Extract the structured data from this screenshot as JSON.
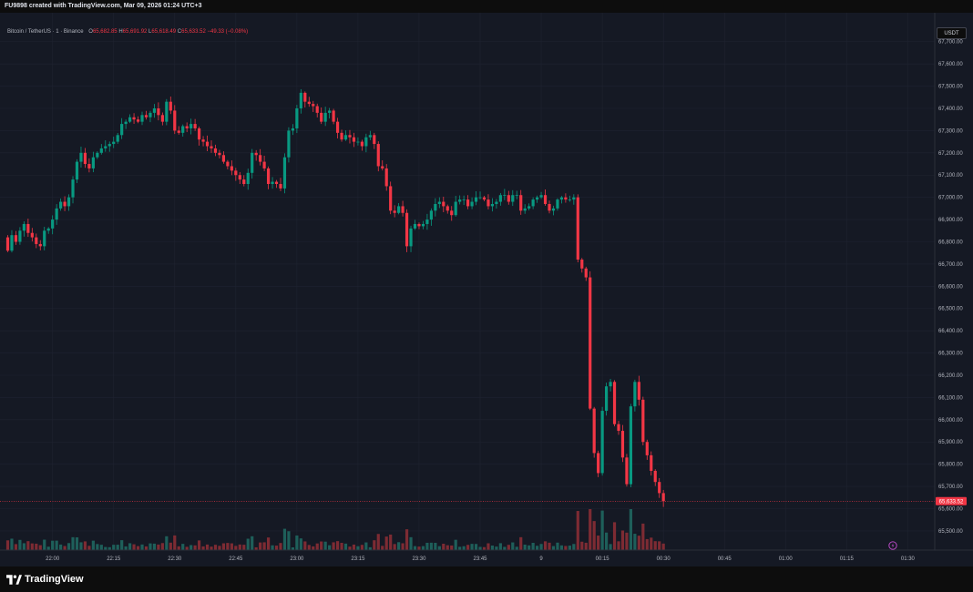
{
  "header": {
    "caption": "FU9898 created with TradingView.com, Mar 09, 2026 01:24 UTC+3"
  },
  "legend": {
    "symbol": "Bitcoin / TetherUS · 1 · Binance",
    "open_label": "O",
    "open": "65,682.85",
    "high_label": "H",
    "high": "65,691.92",
    "low_label": "L",
    "low": "65,618.49",
    "close_label": "C",
    "close": "65,633.52",
    "change": "−49.33 (−0.08%)"
  },
  "currency": "USDT",
  "last_price_label": "65,633.52",
  "footer": {
    "brand": "TradingView"
  },
  "colors": {
    "background": "#151924",
    "grid": "#1f2330",
    "up": "#089981",
    "down": "#f23645",
    "vol_up": "#1e5f5a",
    "vol_down": "#7d2b33"
  },
  "chart_data": {
    "type": "candlestick",
    "interval_minutes": 1,
    "y_axis": {
      "range": [
        65430,
        67830
      ],
      "ticks": [
        65500,
        65600,
        65700,
        65800,
        65900,
        66000,
        66100,
        66200,
        66300,
        66400,
        66500,
        66600,
        66700,
        66800,
        66900,
        67000,
        67100,
        67200,
        67300,
        67400,
        67500,
        67600,
        67700
      ],
      "tick_labels": [
        "65,500.00",
        "65,600.00",
        "65,700.00",
        "65,800.00",
        "65,900.00",
        "66,000.00",
        "66,100.00",
        "66,200.00",
        "66,300.00",
        "66,400.00",
        "66,500.00",
        "66,600.00",
        "66,700.00",
        "66,800.00",
        "66,900.00",
        "67,000.00",
        "67,100.00",
        "67,200.00",
        "67,300.00",
        "67,400.00",
        "67,500.00",
        "67,600.00",
        "67,700.00"
      ]
    },
    "x_axis": {
      "labels": [
        {
          "label": "22:00",
          "minute": 11
        },
        {
          "label": "22:15",
          "minute": 26
        },
        {
          "label": "22:30",
          "minute": 41
        },
        {
          "label": "22:45",
          "minute": 56
        },
        {
          "label": "23:00",
          "minute": 71
        },
        {
          "label": "23:15",
          "minute": 86
        },
        {
          "label": "23:30",
          "minute": 101
        },
        {
          "label": "23:45",
          "minute": 116
        },
        {
          "label": "9",
          "minute": 131
        },
        {
          "label": "00:15",
          "minute": 146
        },
        {
          "label": "00:30",
          "minute": 161
        },
        {
          "label": "00:45",
          "minute": 176
        },
        {
          "label": "01:00",
          "minute": 191
        },
        {
          "label": "01:15",
          "minute": 206
        },
        {
          "label": "01:30",
          "minute": 221
        }
      ]
    },
    "last_close": 65633.52,
    "closes": [
      66760,
      66830,
      66800,
      66850,
      66880,
      66840,
      66820,
      66790,
      66780,
      66850,
      66860,
      66900,
      66950,
      66980,
      66960,
      67000,
      67080,
      67160,
      67200,
      67150,
      67130,
      67180,
      67200,
      67220,
      67230,
      67240,
      67250,
      67280,
      67330,
      67340,
      67360,
      67350,
      67340,
      67370,
      67360,
      67380,
      67400,
      67370,
      67340,
      67430,
      67390,
      67300,
      67290,
      67320,
      67310,
      67330,
      67310,
      67260,
      67250,
      67230,
      67220,
      67200,
      67190,
      67160,
      67140,
      67120,
      67100,
      67080,
      67060,
      67110,
      67200,
      67190,
      67160,
      67130,
      67060,
      67070,
      67060,
      67040,
      67180,
      67300,
      67310,
      67400,
      67470,
      67430,
      67420,
      67410,
      67380,
      67340,
      67380,
      67390,
      67340,
      67290,
      67260,
      67280,
      67270,
      67250,
      67250,
      67230,
      67270,
      67280,
      67240,
      67140,
      67130,
      67050,
      66940,
      66930,
      66960,
      66930,
      66780,
      66860,
      66880,
      66870,
      66880,
      66900,
      66940,
      66970,
      66980,
      66960,
      66940,
      66920,
      66980,
      66990,
      66990,
      66960,
      66980,
      67000,
      67000,
      66990,
      66960,
      66970,
      66980,
      67010,
      67010,
      66980,
      67010,
      67010,
      66940,
      66950,
      66960,
      66990,
      67000,
      67010,
      66970,
      66940,
      66950,
      66990,
      67000,
      66990,
      66990,
      67000,
      66720,
      66680,
      66640,
      66050,
      65850,
      65760,
      66040,
      66150,
      66170,
      65980,
      65950,
      65830,
      65710,
      66060,
      66170,
      66090,
      65900,
      65840,
      65770,
      65720,
      65670,
      65633.52
    ]
  }
}
